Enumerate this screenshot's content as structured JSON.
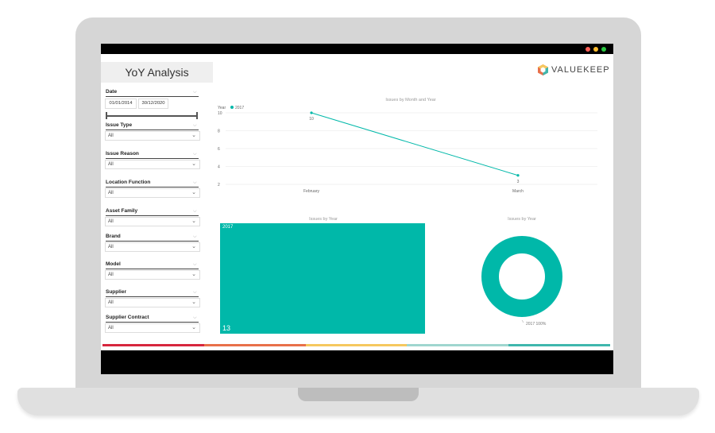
{
  "panel": {
    "title": "YoY Analysis"
  },
  "filters": {
    "date": {
      "label": "Date",
      "start": "01/01/2014",
      "end": "30/12/2020"
    },
    "items": [
      {
        "label": "Issue Type",
        "value": "All"
      },
      {
        "label": "Issue Reason",
        "value": "All"
      },
      {
        "label": "Location Function",
        "value": "All"
      },
      {
        "label": "Asset Family",
        "value": "All"
      },
      {
        "label": "Brand",
        "value": "All"
      },
      {
        "label": "Model",
        "value": "All"
      },
      {
        "label": "Supplier",
        "value": "All"
      },
      {
        "label": "Supplier Contract",
        "value": "All"
      }
    ]
  },
  "logo": {
    "text": "VALUEKEEP"
  },
  "colors": {
    "accent": "#00b8a9",
    "window_dots": [
      "#ff5f57",
      "#febc2e",
      "#28c840"
    ],
    "bottom_bar": [
      "#d7263d",
      "#e8704a",
      "#f6c85f",
      "#9fd6cf",
      "#3fb7ad"
    ]
  },
  "chart_data": [
    {
      "type": "line",
      "title": "Issues by Month and Year",
      "legend_title": "Year",
      "legend_position": "top-left",
      "series": [
        {
          "name": "2017",
          "values": [
            10,
            3
          ]
        }
      ],
      "categories": [
        "February",
        "March"
      ],
      "data_labels": [
        "10",
        "3"
      ],
      "yticks": [
        2,
        4,
        6,
        8,
        10
      ],
      "ylim": [
        2,
        10
      ],
      "grid": true
    },
    {
      "type": "treemap",
      "title": "Issues by Year",
      "categories": [
        "2017"
      ],
      "values": [
        13
      ]
    },
    {
      "type": "pie",
      "title": "Issues by Year",
      "categories": [
        "2017"
      ],
      "values": [
        100
      ],
      "data_label": "2017 100%"
    }
  ]
}
